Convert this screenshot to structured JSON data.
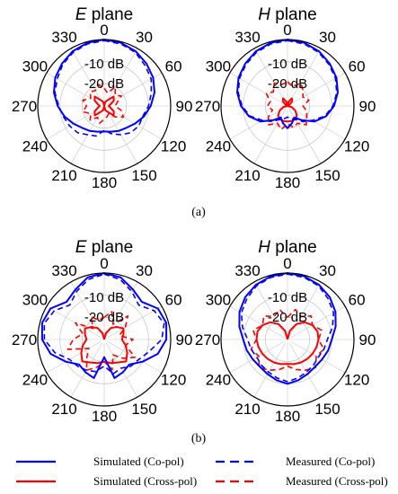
{
  "chart_data": [
    {
      "type": "polar-line",
      "panel": "(a)",
      "title": {
        "italic": "E",
        "rest": " plane"
      },
      "angle_ticks": [
        "0",
        "30",
        "60",
        "90",
        "120",
        "150",
        "180",
        "210",
        "240",
        "270",
        "300",
        "330"
      ],
      "radial_labels": [
        "-10 dB",
        "-20 dB"
      ],
      "rlim_db": [
        -30,
        0
      ],
      "angles_deg": [
        0,
        15,
        30,
        45,
        60,
        75,
        90,
        105,
        120,
        135,
        150,
        165,
        180,
        195,
        210,
        225,
        240,
        255,
        270,
        285,
        300,
        315,
        330,
        345
      ],
      "series": [
        {
          "name": "Simulated (Co-pol)",
          "values_db": [
            0,
            -0.5,
            -1.5,
            -3,
            -4.5,
            -6.5,
            -9,
            -11.5,
            -14,
            -16,
            -17,
            -18,
            -18.5,
            -18,
            -17,
            -16,
            -14,
            -11.5,
            -9,
            -6.5,
            -4.5,
            -3,
            -1.5,
            -0.5
          ]
        },
        {
          "name": "Measured (Co-pol)",
          "values_db": [
            -0.5,
            -1,
            -2,
            -4,
            -5.5,
            -8,
            -10,
            -12,
            -12,
            -13,
            -15,
            -17,
            -19,
            -16,
            -15,
            -13,
            -12,
            -11,
            -9.5,
            -7,
            -5.5,
            -3.5,
            -2,
            -1
          ]
        },
        {
          "name": "Simulated (Cross-pol)",
          "values_db": [
            -30,
            -28,
            -27,
            -24,
            -25,
            -27,
            -28,
            -27,
            -25,
            -24,
            -27,
            -28,
            -30,
            -28,
            -27,
            -24,
            -25,
            -27,
            -28,
            -27,
            -25,
            -24,
            -27,
            -28
          ]
        },
        {
          "name": "Measured (Cross-pol)",
          "values_db": [
            -22,
            -24,
            -20,
            -23,
            -21,
            -24,
            -25,
            -22,
            -20,
            -23,
            -26,
            -25,
            -24,
            -22,
            -24,
            -21,
            -23,
            -20,
            -22,
            -20,
            -23,
            -21,
            -22,
            -20
          ]
        }
      ]
    },
    {
      "type": "polar-line",
      "panel": "(a)",
      "title": {
        "italic": "H",
        "rest": " plane"
      },
      "angle_ticks": [
        "0",
        "30",
        "60",
        "90",
        "120",
        "150",
        "180",
        "210",
        "240",
        "270",
        "300",
        "330"
      ],
      "radial_labels": [
        "-10 dB",
        "-20 dB"
      ],
      "rlim_db": [
        -30,
        0
      ],
      "angles_deg": [
        0,
        15,
        30,
        45,
        60,
        75,
        90,
        105,
        120,
        135,
        150,
        165,
        180,
        195,
        210,
        225,
        240,
        255,
        270,
        285,
        300,
        315,
        330,
        345
      ],
      "series": [
        {
          "name": "Simulated (Co-pol)",
          "values_db": [
            0,
            -0.5,
            -1.5,
            -3,
            -4.5,
            -6.5,
            -9,
            -12,
            -16,
            -21,
            -24,
            -22,
            -20,
            -22,
            -24,
            -21,
            -16,
            -12,
            -9,
            -6.5,
            -4.5,
            -3,
            -1.5,
            -0.5
          ]
        },
        {
          "name": "Measured (Co-pol)",
          "values_db": [
            -0.5,
            -1,
            -2,
            -3.5,
            -5,
            -7,
            -9.5,
            -12.5,
            -17,
            -20,
            -23,
            -24,
            -25,
            -24,
            -23,
            -20,
            -17,
            -12.5,
            -9.5,
            -7,
            -5,
            -3.5,
            -2,
            -1
          ]
        },
        {
          "name": "Simulated (Cross-pol)",
          "values_db": [
            -30,
            -28,
            -26,
            -27,
            -29,
            -30,
            -30,
            -28,
            -26,
            -24,
            -23,
            -23,
            -23,
            -23,
            -23,
            -24,
            -26,
            -28,
            -30,
            -30,
            -29,
            -27,
            -26,
            -28
          ]
        },
        {
          "name": "Measured (Cross-pol)",
          "values_db": [
            -19,
            -21,
            -18,
            -20,
            -22,
            -20,
            -23,
            -21,
            -20,
            -18,
            -21,
            -20,
            -22,
            -19,
            -21,
            -18,
            -20,
            -23,
            -21,
            -22,
            -19,
            -21,
            -18,
            -20
          ]
        }
      ]
    },
    {
      "type": "polar-line",
      "panel": "(b)",
      "title": {
        "italic": "E",
        "rest": " plane"
      },
      "angle_ticks": [
        "0",
        "30",
        "60",
        "90",
        "120",
        "150",
        "180",
        "210",
        "240",
        "270",
        "300",
        "330"
      ],
      "radial_labels": [
        "-10 dB",
        "-20 dB"
      ],
      "rlim_db": [
        -30,
        0
      ],
      "angles_deg": [
        0,
        15,
        30,
        45,
        60,
        75,
        90,
        105,
        120,
        135,
        150,
        165,
        180,
        195,
        210,
        225,
        240,
        255,
        270,
        285,
        300,
        315,
        330,
        345
      ],
      "series": [
        {
          "name": "Simulated (Co-pol)",
          "values_db": [
            0,
            -1,
            -4,
            -6,
            -2,
            -1,
            -2,
            -5,
            -10,
            -14,
            -13,
            -12,
            -22,
            -12,
            -13,
            -14,
            -10,
            -5,
            -2,
            -1,
            -2,
            -6,
            -4,
            -1
          ]
        },
        {
          "name": "Measured (Co-pol)",
          "values_db": [
            -0.5,
            -2,
            -5,
            -8,
            -4,
            -2,
            -4,
            -9,
            -12,
            -13,
            -15,
            -14,
            -18,
            -15,
            -14,
            -13,
            -12,
            -7,
            -3,
            -2,
            -4,
            -8,
            -5,
            -2
          ]
        },
        {
          "name": "Simulated (Cross-pol)",
          "values_db": [
            -30,
            -27,
            -24,
            -22,
            -20,
            -21,
            -22,
            -20,
            -18,
            -16,
            -18,
            -19,
            -20,
            -19,
            -18,
            -16,
            -18,
            -20,
            -22,
            -21,
            -20,
            -22,
            -24,
            -27
          ]
        },
        {
          "name": "Measured (Cross-pol)",
          "values_db": [
            -20,
            -17,
            -22,
            -15,
            -19,
            -23,
            -17,
            -20,
            -14,
            -18,
            -22,
            -16,
            -20,
            -17,
            -14,
            -19,
            -22,
            -13,
            -16,
            -20,
            -15,
            -23,
            -18,
            -21
          ]
        }
      ]
    },
    {
      "type": "polar-line",
      "panel": "(b)",
      "title": {
        "italic": "H",
        "rest": " plane"
      },
      "angle_ticks": [
        "0",
        "30",
        "60",
        "90",
        "120",
        "150",
        "180",
        "210",
        "240",
        "270",
        "300",
        "330"
      ],
      "radial_labels": [
        "-10 dB",
        "-20 dB"
      ],
      "rlim_db": [
        -30,
        0
      ],
      "angles_deg": [
        0,
        15,
        30,
        45,
        60,
        75,
        90,
        105,
        120,
        135,
        150,
        165,
        180,
        195,
        210,
        225,
        240,
        255,
        270,
        285,
        300,
        315,
        330,
        345
      ],
      "series": [
        {
          "name": "Simulated (Co-pol)",
          "values_db": [
            0,
            -0.5,
            -1.5,
            -3,
            -5,
            -7.5,
            -10,
            -11,
            -12,
            -12.5,
            -12,
            -11,
            -10,
            -11,
            -12,
            -12.5,
            -12,
            -11,
            -10,
            -7.5,
            -5,
            -3,
            -1.5,
            -0.5
          ]
        },
        {
          "name": "Measured (Co-pol)",
          "values_db": [
            -0.5,
            -1,
            -2,
            -4,
            -6,
            -9,
            -12,
            -13,
            -14,
            -13.5,
            -13,
            -12,
            -11,
            -12,
            -13,
            -13.5,
            -14,
            -13,
            -12,
            -9,
            -6,
            -4,
            -2,
            -1
          ]
        },
        {
          "name": "Simulated (Cross-pol)",
          "values_db": [
            -30,
            -26,
            -22,
            -19,
            -17,
            -16,
            -16,
            -16.5,
            -17,
            -17.5,
            -18,
            -18.5,
            -19,
            -18.5,
            -18,
            -17.5,
            -17,
            -16.5,
            -16,
            -16,
            -17,
            -19,
            -22,
            -26
          ]
        },
        {
          "name": "Measured (Cross-pol)",
          "values_db": [
            -20,
            -16,
            -18,
            -15,
            -17,
            -14,
            -16,
            -13,
            -15,
            -12,
            -14,
            -16,
            -18,
            -16,
            -14,
            -12,
            -15,
            -13,
            -16,
            -14,
            -17,
            -15,
            -18,
            -16
          ]
        }
      ]
    }
  ],
  "subfigure_labels": [
    "(a)",
    "(b)"
  ],
  "legend": [
    {
      "label": "Simulated (Co-pol)",
      "color": "#0000ff",
      "dash": "solid"
    },
    {
      "label": "Measured (Co-pol)",
      "color": "#0000ff",
      "dash": "dashed"
    },
    {
      "label": "Simulated (Cross-pol)",
      "color": "#ff0000",
      "dash": "solid"
    },
    {
      "label": "Measured (Cross-pol)",
      "color": "#ff0000",
      "dash": "dashed"
    }
  ],
  "colors": {
    "co": "#0000ff",
    "cross": "#ff0000",
    "grid": "#c8c8c8",
    "axis": "#000000"
  }
}
